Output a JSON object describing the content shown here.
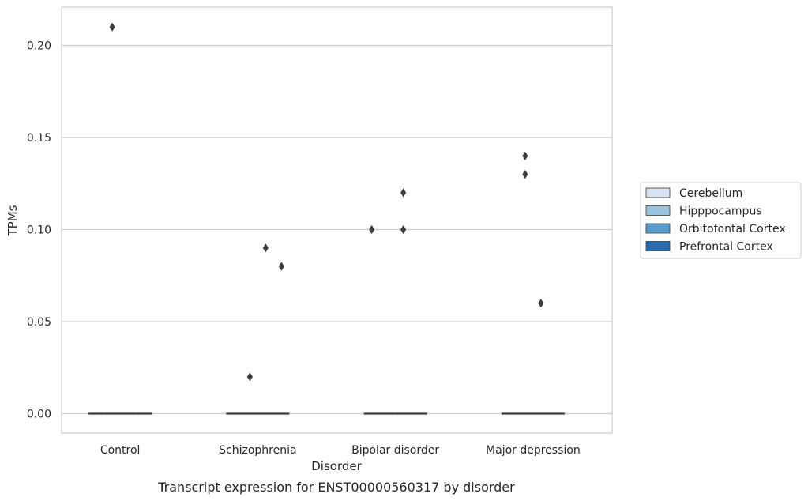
{
  "chart_data": {
    "type": "box",
    "title": "",
    "caption": "Transcript expression for ENST00000560317 by disorder",
    "xlabel": "Disorder",
    "ylabel": "TPMs",
    "categories": [
      "Control",
      "Schizophrenia",
      "Bipolar disorder",
      "Major depression"
    ],
    "ylim": [
      -0.01,
      0.22
    ],
    "yticks": [
      0.0,
      0.05,
      0.1,
      0.15,
      0.2
    ],
    "ytick_labels": [
      "0.00",
      "0.05",
      "0.10",
      "0.15",
      "0.20"
    ],
    "grid": "horizontal",
    "legend_position": "right",
    "series": [
      {
        "name": "Cerebellum",
        "color": "#d4e4f4",
        "median": [
          0,
          0,
          0,
          0
        ],
        "outliers": [
          [],
          [],
          [
            0.1
          ],
          []
        ]
      },
      {
        "name": "Hipppocampus",
        "color": "#99c4e0",
        "median": [
          0,
          0,
          0,
          0
        ],
        "outliers": [
          [
            0.21
          ],
          [
            0.02
          ],
          [],
          [
            0.14,
            0.13
          ]
        ]
      },
      {
        "name": "Orbitofontal Cortex",
        "color": "#5a9bcb",
        "median": [
          0,
          0,
          0,
          0
        ],
        "outliers": [
          [],
          [
            0.09
          ],
          [
            0.12,
            0.1
          ],
          [
            0.06
          ]
        ]
      },
      {
        "name": "Prefrontal Cortex",
        "color": "#2a6aad",
        "median": [
          0,
          0,
          0,
          0
        ],
        "outliers": [
          [],
          [
            0.08
          ],
          [],
          []
        ]
      }
    ]
  }
}
